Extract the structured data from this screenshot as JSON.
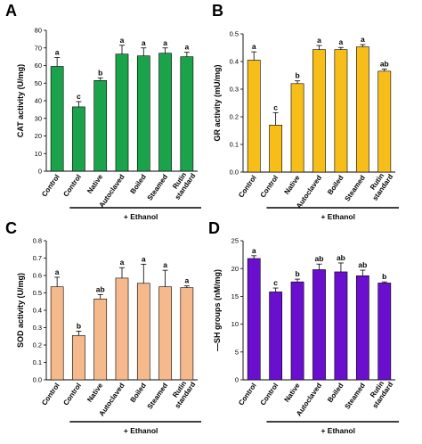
{
  "chart_data": [
    {
      "type": "bar",
      "panel_label": "A",
      "categories": [
        "Control",
        "Control",
        "Native",
        "Autoclaved",
        "Boiled",
        "Steamed",
        "Rutin standard"
      ],
      "values": [
        59.5,
        36.5,
        51.5,
        66.5,
        65.5,
        67.0,
        65.0
      ],
      "errors": [
        5.0,
        3.0,
        1.5,
        5.0,
        4.5,
        3.0,
        2.5
      ],
      "significance": [
        "a",
        "c",
        "b",
        "a",
        "a",
        "a",
        "a"
      ],
      "ylabel": "CAT activity (U/mg)",
      "ylim": [
        0,
        80
      ],
      "yticks": [
        "0",
        "10",
        "20",
        "30",
        "40",
        "50",
        "60",
        "70",
        "80"
      ],
      "group_label": "+ Ethanol",
      "color": "#1aa34a"
    },
    {
      "type": "bar",
      "panel_label": "B",
      "categories": [
        "Control",
        "Control",
        "Native",
        "Autoclaved",
        "Boiled",
        "Steamed",
        "Rutin standard"
      ],
      "values": [
        0.405,
        0.17,
        0.32,
        0.443,
        0.443,
        0.453,
        0.365
      ],
      "errors": [
        0.03,
        0.045,
        0.01,
        0.015,
        0.008,
        0.008,
        0.008
      ],
      "significance": [
        "a",
        "c",
        "b",
        "a",
        "a",
        "a",
        "ab"
      ],
      "ylabel": "GR activity (mU/mg)",
      "ylim": [
        0,
        0.5
      ],
      "yticks": [
        "0.0",
        "0.1",
        "0.2",
        "0.3",
        "0.4",
        "0.5"
      ],
      "group_label": "+ Ethanol",
      "color": "#f7be1a"
    },
    {
      "type": "bar",
      "panel_label": "C",
      "categories": [
        "Control",
        "Control",
        "Native",
        "Autoclaved",
        "Boiled",
        "Steamed",
        "Rutin standard"
      ],
      "values": [
        0.535,
        0.255,
        0.465,
        0.585,
        0.555,
        0.535,
        0.53
      ],
      "errors": [
        0.055,
        0.025,
        0.025,
        0.06,
        0.11,
        0.095,
        0.01
      ],
      "significance": [
        "a",
        "b",
        "ab",
        "a",
        "a",
        "a",
        "a"
      ],
      "ylabel": "SOD activity (U/mg)",
      "ylim": [
        0,
        0.8
      ],
      "yticks": [
        "0.0",
        "0.1",
        "0.2",
        "0.3",
        "0.4",
        "0.5",
        "0.6",
        "0.7",
        "0.8"
      ],
      "group_label": "+ Ethanol",
      "color": "#f5b98c"
    },
    {
      "type": "bar",
      "panel_label": "D",
      "categories": [
        "Control",
        "Control",
        "Native",
        "Autoclaved",
        "Boiled",
        "Steamed",
        "Rutin standard"
      ],
      "values": [
        21.8,
        15.8,
        17.6,
        19.8,
        19.4,
        18.7,
        17.4
      ],
      "errors": [
        0.5,
        0.7,
        0.5,
        1.0,
        1.6,
        1.0,
        0.2
      ],
      "significance": [
        "a",
        "c",
        "b",
        "ab",
        "ab",
        "ab",
        "b"
      ],
      "ylabel": "—SH groups (nM/mg)",
      "ylim": [
        0,
        25
      ],
      "yticks": [
        "0",
        "5",
        "10",
        "15",
        "20",
        "25"
      ],
      "group_label": "+ Ethanol",
      "color": "#6b0fcf"
    }
  ]
}
